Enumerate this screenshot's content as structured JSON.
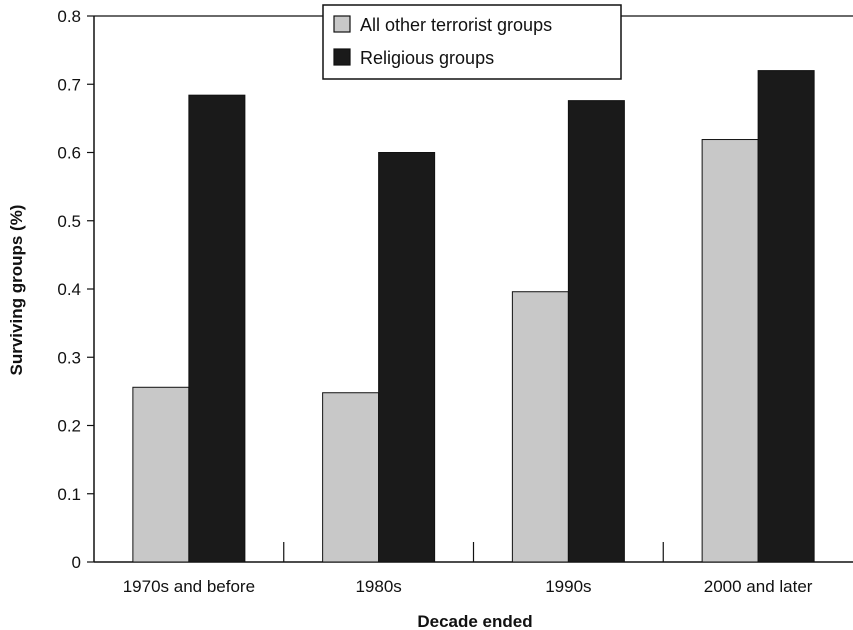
{
  "chart_data": {
    "type": "bar",
    "title": "",
    "xlabel": "Decade ended",
    "ylabel": "Surviving groups (%)",
    "categories": [
      "1970s and before",
      "1980s",
      "1990s",
      "2000 and later"
    ],
    "series": [
      {
        "name": "All other terrorist groups",
        "values": [
          0.256,
          0.248,
          0.396,
          0.619
        ],
        "color": "#c8c8c8"
      },
      {
        "name": "Religious groups",
        "values": [
          0.684,
          0.6,
          0.676,
          0.72
        ],
        "color": "#1a1a1a"
      }
    ],
    "ylim": [
      0,
      0.8
    ],
    "yticks": [
      "0",
      "0.1",
      "0.2",
      "0.3",
      "0.4",
      "0.5",
      "0.6",
      "0.7",
      "0.8"
    ],
    "grid": false,
    "legend_position": "top-center"
  }
}
